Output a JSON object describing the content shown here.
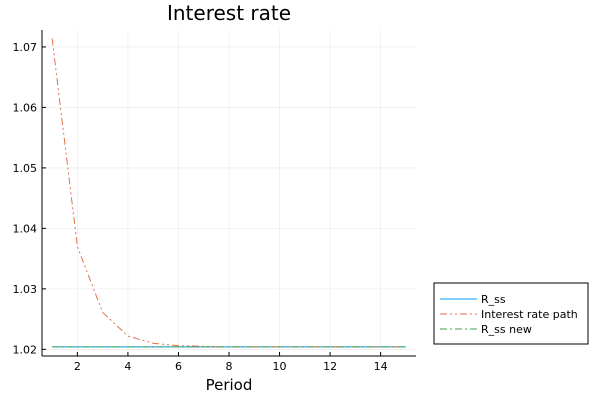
{
  "chart_data": {
    "type": "line",
    "title": "Interest rate",
    "xlabel": "Period",
    "ylabel": "",
    "xlim": [
      0.6,
      15.4
    ],
    "ylim": [
      1.0189,
      1.0728
    ],
    "xticks": [
      2,
      4,
      6,
      8,
      10,
      12,
      14
    ],
    "yticks": [
      1.02,
      1.03,
      1.04,
      1.05,
      1.06,
      1.07
    ],
    "xtick_labels": [
      "2",
      "4",
      "6",
      "8",
      "10",
      "12",
      "14"
    ],
    "ytick_labels": [
      "1.02",
      "1.03",
      "1.04",
      "1.05",
      "1.06",
      "1.07"
    ],
    "grid": true,
    "legend_position": "outside-bottom-right",
    "x": [
      1,
      2,
      3,
      4,
      5,
      6,
      7,
      8,
      9,
      10,
      11,
      12,
      13,
      14,
      15
    ],
    "series": [
      {
        "name": "R_ss",
        "color": "#009AFA",
        "style": "solid",
        "values": [
          1.0204,
          1.0204,
          1.0204,
          1.0204,
          1.0204,
          1.0204,
          1.0204,
          1.0204,
          1.0204,
          1.0204,
          1.0204,
          1.0204,
          1.0204,
          1.0204,
          1.0204
        ]
      },
      {
        "name": "Interest rate path",
        "color": "#E36F47",
        "style": "dashdotdot",
        "values": [
          1.0714,
          1.037,
          1.0261,
          1.0222,
          1.021,
          1.0206,
          1.0205,
          1.0204,
          1.0204,
          1.0204,
          1.0204,
          1.0204,
          1.0204,
          1.0204,
          1.0204
        ]
      },
      {
        "name": "R_ss new",
        "color": "#3EA44E",
        "style": "dashdot",
        "values": [
          1.0204,
          1.0204,
          1.0204,
          1.0204,
          1.0204,
          1.0204,
          1.0204,
          1.0204,
          1.0204,
          1.0204,
          1.0204,
          1.0204,
          1.0204,
          1.0204,
          1.0204
        ]
      }
    ]
  }
}
